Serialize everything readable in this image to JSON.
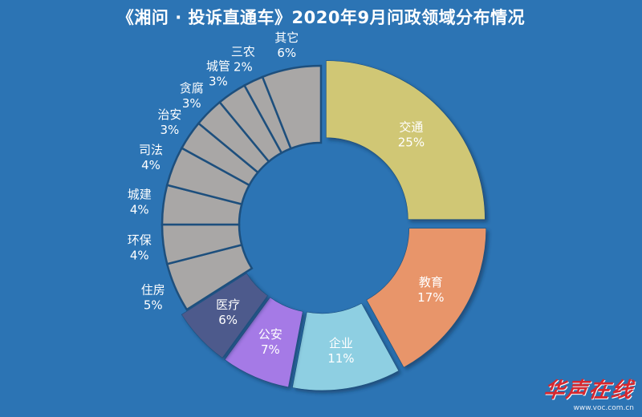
{
  "title": "《湘问 · 投诉直通车》2020年9月问政领域分布情况",
  "watermark": {
    "logo": "华声在线",
    "url": "www.voc.com.cn"
  },
  "colors": {
    "background": "#2c74b4",
    "separator": "#1d4f7d",
    "label_on_slice": "#ffffff",
    "label_outside": "#ffffff"
  },
  "chart_data": {
    "type": "pie",
    "variant": "donut",
    "title": "《湘问 · 投诉直通车》2020年9月问政领域分布情况",
    "slices": [
      {
        "label": "交通",
        "value": 25,
        "display": "25%",
        "color": "#d0c774",
        "exploded": true
      },
      {
        "label": "教育",
        "value": 17,
        "display": "17%",
        "color": "#e8956a",
        "exploded": true
      },
      {
        "label": "企业",
        "value": 11,
        "display": "11%",
        "color": "#8ecfe2",
        "exploded": true
      },
      {
        "label": "公安",
        "value": 7,
        "display": "7%",
        "color": "#a57ae6",
        "exploded": true
      },
      {
        "label": "医疗",
        "value": 6,
        "display": "6%",
        "color": "#4d5a8c",
        "exploded": true
      },
      {
        "label": "住房",
        "value": 5,
        "display": "5%",
        "color": "#a9a7a6",
        "exploded": false
      },
      {
        "label": "环保",
        "value": 4,
        "display": "4%",
        "color": "#a9a7a6",
        "exploded": false
      },
      {
        "label": "城建",
        "value": 4,
        "display": "4%",
        "color": "#a9a7a6",
        "exploded": false
      },
      {
        "label": "司法",
        "value": 4,
        "display": "4%",
        "color": "#a9a7a6",
        "exploded": false
      },
      {
        "label": "治安",
        "value": 3,
        "display": "3%",
        "color": "#a9a7a6",
        "exploded": false
      },
      {
        "label": "贪腐",
        "value": 3,
        "display": "3%",
        "color": "#a9a7a6",
        "exploded": false
      },
      {
        "label": "城管",
        "value": 3,
        "display": "3%",
        "color": "#a9a7a6",
        "exploded": false
      },
      {
        "label": "三农",
        "value": 2,
        "display": "2%",
        "color": "#a9a7a6",
        "exploded": false
      },
      {
        "label": "其它",
        "value": 6,
        "display": "6%",
        "color": "#a9a7a6",
        "exploded": false
      }
    ]
  }
}
